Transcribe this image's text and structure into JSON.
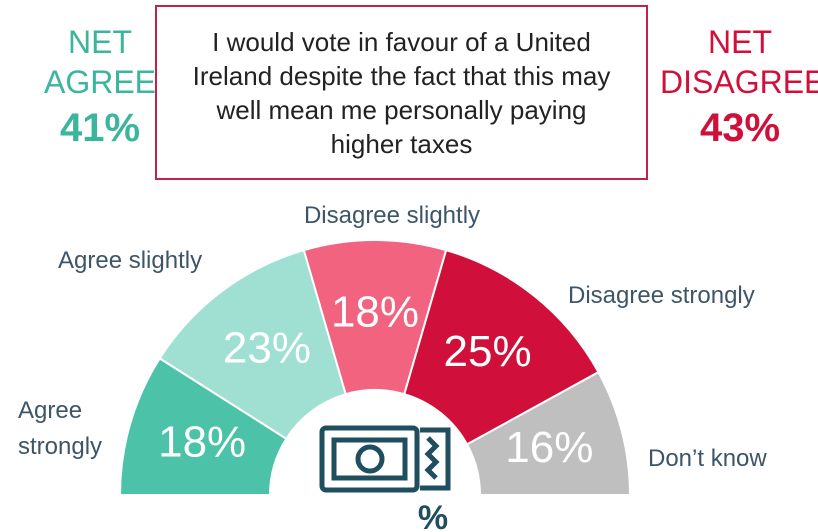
{
  "chart_data": {
    "type": "semi-donut",
    "title": "I would vote in favour of a United Ireland despite the fact that this may well mean me personally paying higher taxes",
    "categories": [
      "Agree strongly",
      "Agree slightly",
      "Disagree slightly",
      "Disagree strongly",
      "Don’t know"
    ],
    "values": [
      18,
      23,
      18,
      25,
      16
    ],
    "value_labels": [
      "18%",
      "23%",
      "18%",
      "25%",
      "16%"
    ],
    "colors": [
      "#4cc3a8",
      "#9fe0d3",
      "#f2637f",
      "#d0103a",
      "#bfbfbf"
    ],
    "annotations": [
      {
        "text": "NET AGREE",
        "value": 41,
        "value_label": "41%",
        "color": "#3bb59c"
      },
      {
        "text": "NET DISAGREE",
        "value": 43,
        "value_label": "43%",
        "color": "#d0103a"
      }
    ],
    "icon_label": "%"
  }
}
